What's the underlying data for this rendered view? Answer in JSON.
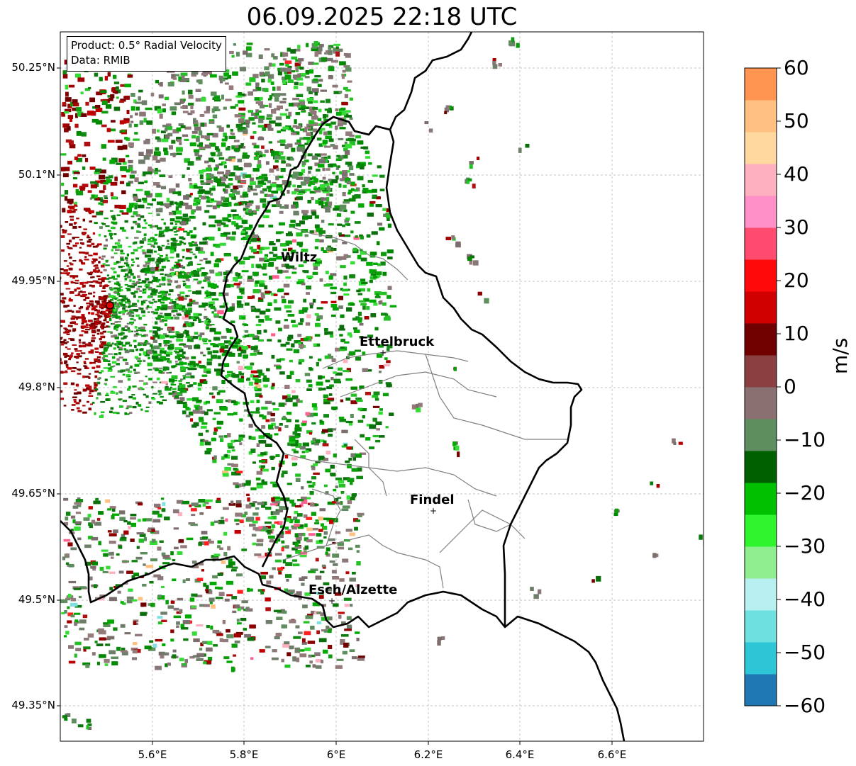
{
  "title": "06.09.2025 22:18 UTC",
  "info": {
    "product": "Product: 0.5° Radial Velocity",
    "source": "Data: RMIB"
  },
  "lat_ticks": [
    "50.25°N",
    "50.1°N",
    "49.95°N",
    "49.8°N",
    "49.65°N",
    "49.5°N",
    "49.35°N"
  ],
  "lon_ticks": [
    "5.6°E",
    "5.8°E",
    "6°E",
    "6.2°E",
    "6.4°E",
    "6.6°E"
  ],
  "cities": [
    {
      "name": "Wiltz"
    },
    {
      "name": "Ettelbruck"
    },
    {
      "name": "Findel"
    },
    {
      "name": "Esch/Alzette"
    }
  ],
  "colorbar": {
    "unit": "m/s",
    "ticks": [
      "60",
      "50",
      "40",
      "30",
      "20",
      "10",
      "0",
      "−10",
      "−20",
      "−30",
      "−40",
      "−50",
      "−60"
    ],
    "range": [
      -60,
      60
    ],
    "stops": [
      "#1f77b4",
      "#2cc6d6",
      "#6fe0e0",
      "#b8eff0",
      "#90ee90",
      "#2ef52e",
      "#00c000",
      "#006000",
      "#5e8e5e",
      "#8a7070",
      "#8a4040",
      "#700000",
      "#d00000",
      "#ff0a0a",
      "#ff4b6e",
      "#ff90c8",
      "#ffb0c0",
      "#ffd8a0",
      "#ffc080",
      "#ff9550"
    ]
  },
  "legend_colors": {
    "approaching": "#0a9c0a",
    "receding": "#a00000",
    "zero": "#8a7878",
    "border": "#000000",
    "canton": "#808080"
  }
}
